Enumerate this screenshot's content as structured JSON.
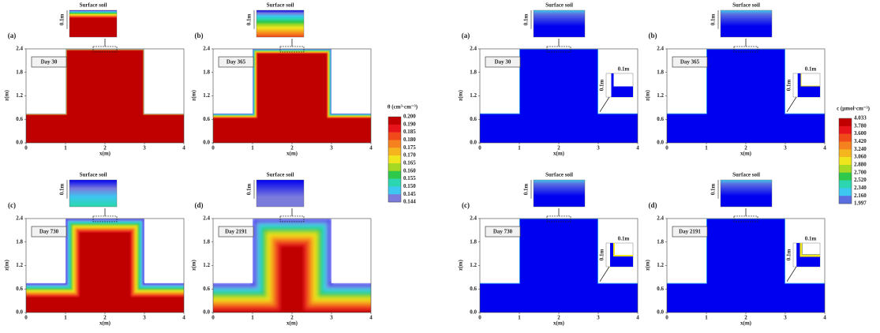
{
  "figures": [
    {
      "colorbar": {
        "title": "θ (cm³·cm⁻³)",
        "labels": [
          "0.200",
          "0.190",
          "0.185",
          "0.180",
          "0.175",
          "0.170",
          "0.165",
          "0.160",
          "0.155",
          "0.150",
          "0.145",
          "0.144"
        ],
        "colors": [
          "#c00000",
          "#e8141c",
          "#f04a1a",
          "#f5821f",
          "#f5b51f",
          "#f0e61e",
          "#a6d923",
          "#2ec84b",
          "#2bd6b0",
          "#3cc8f0",
          "#7b7bdc",
          "#0000f0"
        ]
      },
      "panels": [
        {
          "label": "(a)",
          "day": "Day 30",
          "inset_title": "Surface soil",
          "inset_scale": "0.1m"
        },
        {
          "label": "(b)",
          "day": "Day 365",
          "inset_title": "Surface soil",
          "inset_scale": "0.1m"
        },
        {
          "label": "(c)",
          "day": "Day 730",
          "inset_title": "Surface soil",
          "inset_scale": "0.1m"
        },
        {
          "label": "(d)",
          "day": "Day 2191",
          "inset_title": "Surface soil",
          "inset_scale": "0.1m"
        }
      ]
    },
    {
      "colorbar": {
        "title": "c (μmol·cm⁻³)",
        "labels": [
          "4.033",
          "3.780",
          "3.600",
          "3.420",
          "3.240",
          "3.060",
          "2.880",
          "2.700",
          "2.520",
          "2.340",
          "2.160",
          "1.997"
        ],
        "colors": [
          "#c00000",
          "#e8141c",
          "#f04a1a",
          "#f5821f",
          "#f5b51f",
          "#f0e61e",
          "#a6d923",
          "#2ec84b",
          "#2bd6b0",
          "#3cc8f0",
          "#5a6ee0",
          "#0000f0"
        ]
      },
      "panels": [
        {
          "label": "(a)",
          "day": "Day 30",
          "inset_title": "Surface soil",
          "inset_scale": "0.1m",
          "corner_scale": "0.1m"
        },
        {
          "label": "(b)",
          "day": "Day 365",
          "inset_title": "Surface soil",
          "inset_scale": "0.1m",
          "corner_scale": "0.1m"
        },
        {
          "label": "(c)",
          "day": "Day 730",
          "inset_title": "Surface soil",
          "inset_scale": "0.1m",
          "corner_scale": "0.1m"
        },
        {
          "label": "(d)",
          "day": "Day 2191",
          "inset_title": "Surface soil",
          "inset_scale": "0.1m",
          "corner_scale": "0.1m"
        }
      ]
    }
  ],
  "axes": {
    "xlabel": "x(m)",
    "ylabel": "z(m)",
    "xticks": [
      "0",
      "1",
      "2",
      "3",
      "4"
    ],
    "yticks": [
      "0.0",
      "0.6",
      "1.2",
      "1.8",
      "2.4"
    ]
  }
}
